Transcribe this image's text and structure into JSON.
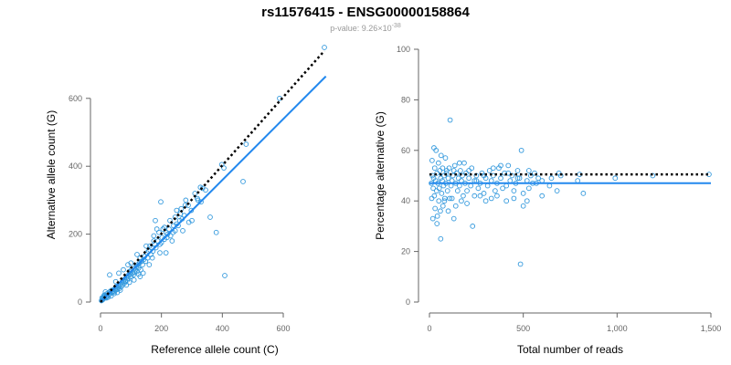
{
  "title": "rs11576415 - ENSG00000158864",
  "subtitle": {
    "prefix": "p-value: 9.26×10",
    "exponent": "-38"
  },
  "colors": {
    "points": "#3399dd",
    "fit_line": "#2288ee",
    "reference_line": "#000000",
    "axis": "#666666"
  },
  "chart_data": [
    {
      "type": "scatter",
      "xlabel": "Reference allele count (C)",
      "ylabel": "Alternative allele count (G)",
      "xlim": [
        0,
        750
      ],
      "ylim": [
        0,
        750
      ],
      "xticks": [
        0,
        200,
        400,
        600
      ],
      "xtick_labels": [
        "0",
        "200",
        "400",
        "600"
      ],
      "yticks": [
        0,
        200,
        400,
        600
      ],
      "ytick_labels": [
        "0",
        "200",
        "400",
        "600"
      ],
      "reference_line": {
        "style": "dotted",
        "points": [
          [
            0,
            0
          ],
          [
            735,
            740
          ]
        ]
      },
      "fit_line": {
        "style": "solid",
        "points": [
          [
            0,
            0
          ],
          [
            740,
            665
          ]
        ]
      },
      "points": [
        [
          735,
          750
        ],
        [
          588,
          600
        ],
        [
          478,
          465
        ],
        [
          468,
          355
        ],
        [
          405,
          395
        ],
        [
          398,
          405
        ],
        [
          408,
          78
        ],
        [
          335,
          335
        ],
        [
          328,
          338
        ],
        [
          318,
          305
        ],
        [
          298,
          270
        ],
        [
          288,
          285
        ],
        [
          278,
          285
        ],
        [
          275,
          255
        ],
        [
          268,
          245
        ],
        [
          260,
          240
        ],
        [
          255,
          225
        ],
        [
          250,
          230
        ],
        [
          245,
          210
        ],
        [
          240,
          225
        ],
        [
          238,
          205
        ],
        [
          230,
          195
        ],
        [
          225,
          215
        ],
        [
          220,
          200
        ],
        [
          218,
          190
        ],
        [
          215,
          205
        ],
        [
          210,
          185
        ],
        [
          205,
          215
        ],
        [
          202,
          190
        ],
        [
          198,
          295
        ],
        [
          195,
          170
        ],
        [
          192,
          205
        ],
        [
          188,
          180
        ],
        [
          185,
          215
        ],
        [
          182,
          160
        ],
        [
          178,
          170
        ],
        [
          175,
          180
        ],
        [
          172,
          150
        ],
        [
          168,
          160
        ],
        [
          165,
          140
        ],
        [
          162,
          165
        ],
        [
          158,
          150
        ],
        [
          155,
          130
        ],
        [
          152,
          145
        ],
        [
          148,
          120
        ],
        [
          145,
          135
        ],
        [
          142,
          125
        ],
        [
          138,
          110
        ],
        [
          135,
          120
        ],
        [
          132,
          95
        ],
        [
          130,
          130
        ],
        [
          128,
          115
        ],
        [
          125,
          100
        ],
        [
          122,
          110
        ],
        [
          120,
          90
        ],
        [
          118,
          105
        ],
        [
          115,
          95
        ],
        [
          112,
          88
        ],
        [
          110,
          100
        ],
        [
          108,
          80
        ],
        [
          105,
          85
        ],
        [
          102,
          95
        ],
        [
          100,
          75
        ],
        [
          98,
          82
        ],
        [
          95,
          90
        ],
        [
          92,
          70
        ],
        [
          90,
          78
        ],
        [
          88,
          65
        ],
        [
          85,
          72
        ],
        [
          82,
          60
        ],
        [
          80,
          68
        ],
        [
          78,
          55
        ],
        [
          75,
          62
        ],
        [
          72,
          50
        ],
        [
          70,
          58
        ],
        [
          68,
          45
        ],
        [
          65,
          52
        ],
        [
          62,
          40
        ],
        [
          60,
          48
        ],
        [
          58,
          42
        ],
        [
          55,
          38
        ],
        [
          52,
          45
        ],
        [
          50,
          35
        ],
        [
          48,
          40
        ],
        [
          45,
          30
        ],
        [
          42,
          36
        ],
        [
          40,
          32
        ],
        [
          38,
          28
        ],
        [
          35,
          34
        ],
        [
          32,
          25
        ],
        [
          30,
          30
        ],
        [
          28,
          22
        ],
        [
          25,
          26
        ],
        [
          22,
          18
        ],
        [
          20,
          24
        ],
        [
          18,
          15
        ],
        [
          15,
          20
        ],
        [
          14,
          12
        ],
        [
          12,
          16
        ],
        [
          10,
          10
        ],
        [
          9,
          14
        ],
        [
          8,
          8
        ],
        [
          30,
          80
        ],
        [
          60,
          85
        ],
        [
          90,
          110
        ],
        [
          130,
          75
        ],
        [
          180,
          240
        ],
        [
          228,
          240
        ],
        [
          262,
          260
        ],
        [
          300,
          240
        ],
        [
          345,
          330
        ],
        [
          360,
          250
        ],
        [
          380,
          205
        ],
        [
          320,
          300
        ],
        [
          290,
          235
        ],
        [
          270,
          210
        ],
        [
          215,
          145
        ],
        [
          170,
          130
        ],
        [
          140,
          85
        ],
        [
          110,
          65
        ],
        [
          85,
          50
        ],
        [
          65,
          35
        ],
        [
          45,
          25
        ],
        [
          25,
          14
        ],
        [
          16,
          30
        ],
        [
          35,
          18
        ],
        [
          55,
          28
        ],
        [
          95,
          58
        ],
        [
          125,
          82
        ],
        [
          160,
          110
        ],
        [
          195,
          145
        ],
        [
          235,
          180
        ],
        [
          250,
          270
        ],
        [
          280,
          300
        ],
        [
          310,
          320
        ],
        [
          330,
          295
        ],
        [
          265,
          275
        ],
        [
          245,
          250
        ],
        [
          210,
          220
        ],
        [
          200,
          175
        ],
        [
          175,
          195
        ],
        [
          150,
          165
        ],
        [
          120,
          140
        ],
        [
          100,
          115
        ],
        [
          75,
          95
        ],
        [
          50,
          60
        ],
        [
          20,
          12
        ],
        [
          12,
          20
        ],
        [
          6,
          6
        ],
        [
          5,
          12
        ],
        [
          3,
          4
        ]
      ]
    },
    {
      "type": "scatter",
      "xlabel": "Total number of reads",
      "ylabel": "Percentage alternative (G)",
      "xlim": [
        0,
        1500
      ],
      "ylim": [
        0,
        100
      ],
      "xticks": [
        0,
        500,
        1000,
        1500
      ],
      "xtick_labels": [
        "0",
        "500",
        "1,000",
        "1,500"
      ],
      "yticks": [
        0,
        20,
        40,
        60,
        80,
        100
      ],
      "ytick_labels": [
        "0",
        "20",
        "40",
        "60",
        "80",
        "100"
      ],
      "reference_line": {
        "style": "dotted",
        "points": [
          [
            0,
            50.5
          ],
          [
            1500,
            50.5
          ]
        ]
      },
      "fit_line": {
        "style": "solid",
        "points": [
          [
            0,
            47
          ],
          [
            1500,
            47
          ]
        ]
      },
      "points": [
        [
          1490,
          50.5
        ],
        [
          1190,
          50
        ],
        [
          990,
          49
        ],
        [
          820,
          43
        ],
        [
          800,
          50.5
        ],
        [
          790,
          48
        ],
        [
          690,
          51
        ],
        [
          680,
          44
        ],
        [
          640,
          46
        ],
        [
          600,
          48
        ],
        [
          580,
          49
        ],
        [
          560,
          51
        ],
        [
          550,
          47
        ],
        [
          540,
          50
        ],
        [
          530,
          45
        ],
        [
          520,
          48
        ],
        [
          500,
          43
        ],
        [
          490,
          60
        ],
        [
          485,
          15
        ],
        [
          480,
          49
        ],
        [
          470,
          52
        ],
        [
          460,
          47
        ],
        [
          450,
          44
        ],
        [
          440,
          50
        ],
        [
          430,
          48
        ],
        [
          420,
          54
        ],
        [
          410,
          46
        ],
        [
          400,
          51
        ],
        [
          390,
          45
        ],
        [
          380,
          49
        ],
        [
          370,
          53
        ],
        [
          360,
          47
        ],
        [
          350,
          44
        ],
        [
          340,
          50
        ],
        [
          330,
          48
        ],
        [
          320,
          52
        ],
        [
          310,
          46
        ],
        [
          300,
          49
        ],
        [
          290,
          43
        ],
        [
          280,
          51
        ],
        [
          270,
          47
        ],
        [
          260,
          45
        ],
        [
          250,
          50
        ],
        [
          240,
          48
        ],
        [
          230,
          30
        ],
        [
          225,
          53
        ],
        [
          220,
          46
        ],
        [
          210,
          49
        ],
        [
          200,
          44
        ],
        [
          195,
          51
        ],
        [
          190,
          47
        ],
        [
          185,
          55
        ],
        [
          180,
          42
        ],
        [
          175,
          50
        ],
        [
          170,
          48
        ],
        [
          165,
          52
        ],
        [
          160,
          46
        ],
        [
          155,
          49
        ],
        [
          150,
          44
        ],
        [
          145,
          51
        ],
        [
          140,
          47
        ],
        [
          135,
          54
        ],
        [
          130,
          33
        ],
        [
          125,
          50
        ],
        [
          120,
          48
        ],
        [
          115,
          46
        ],
        [
          110,
          72
        ],
        [
          108,
          41
        ],
        [
          105,
          53
        ],
        [
          100,
          49
        ],
        [
          96,
          44
        ],
        [
          92,
          52
        ],
        [
          88,
          47
        ],
        [
          85,
          57
        ],
        [
          82,
          41
        ],
        [
          78,
          50
        ],
        [
          75,
          46
        ],
        [
          72,
          38
        ],
        [
          70,
          53
        ],
        [
          68,
          48
        ],
        [
          65,
          43
        ],
        [
          62,
          58
        ],
        [
          60,
          49
        ],
        [
          58,
          36
        ],
        [
          55,
          52
        ],
        [
          52,
          45
        ],
        [
          50,
          40
        ],
        [
          48,
          55
        ],
        [
          45,
          47
        ],
        [
          42,
          34
        ],
        [
          40,
          51
        ],
        [
          38,
          44
        ],
        [
          35,
          60
        ],
        [
          33,
          48
        ],
        [
          30,
          37
        ],
        [
          28,
          53
        ],
        [
          26,
          42
        ],
        [
          24,
          61
        ],
        [
          22,
          49
        ],
        [
          20,
          45
        ],
        [
          18,
          33
        ],
        [
          16,
          50
        ],
        [
          14,
          56
        ],
        [
          12,
          41
        ],
        [
          10,
          47
        ],
        [
          60,
          25
        ],
        [
          40,
          31
        ],
        [
          80,
          40
        ],
        [
          100,
          36
        ],
        [
          120,
          41
        ],
        [
          140,
          38
        ],
        [
          170,
          40
        ],
        [
          200,
          39
        ],
        [
          240,
          42
        ],
        [
          270,
          42
        ],
        [
          300,
          40
        ],
        [
          330,
          41
        ],
        [
          360,
          42
        ],
        [
          410,
          40
        ],
        [
          450,
          41
        ],
        [
          500,
          38
        ],
        [
          520,
          40
        ],
        [
          600,
          42
        ],
        [
          340,
          53
        ],
        [
          380,
          54
        ],
        [
          420,
          51
        ],
        [
          470,
          49
        ],
        [
          530,
          52
        ],
        [
          570,
          47
        ],
        [
          650,
          49
        ],
        [
          700,
          50
        ],
        [
          90,
          51
        ],
        [
          130,
          52
        ],
        [
          160,
          55
        ],
        [
          210,
          52
        ],
        [
          250,
          48
        ],
        [
          290,
          50
        ]
      ]
    }
  ]
}
